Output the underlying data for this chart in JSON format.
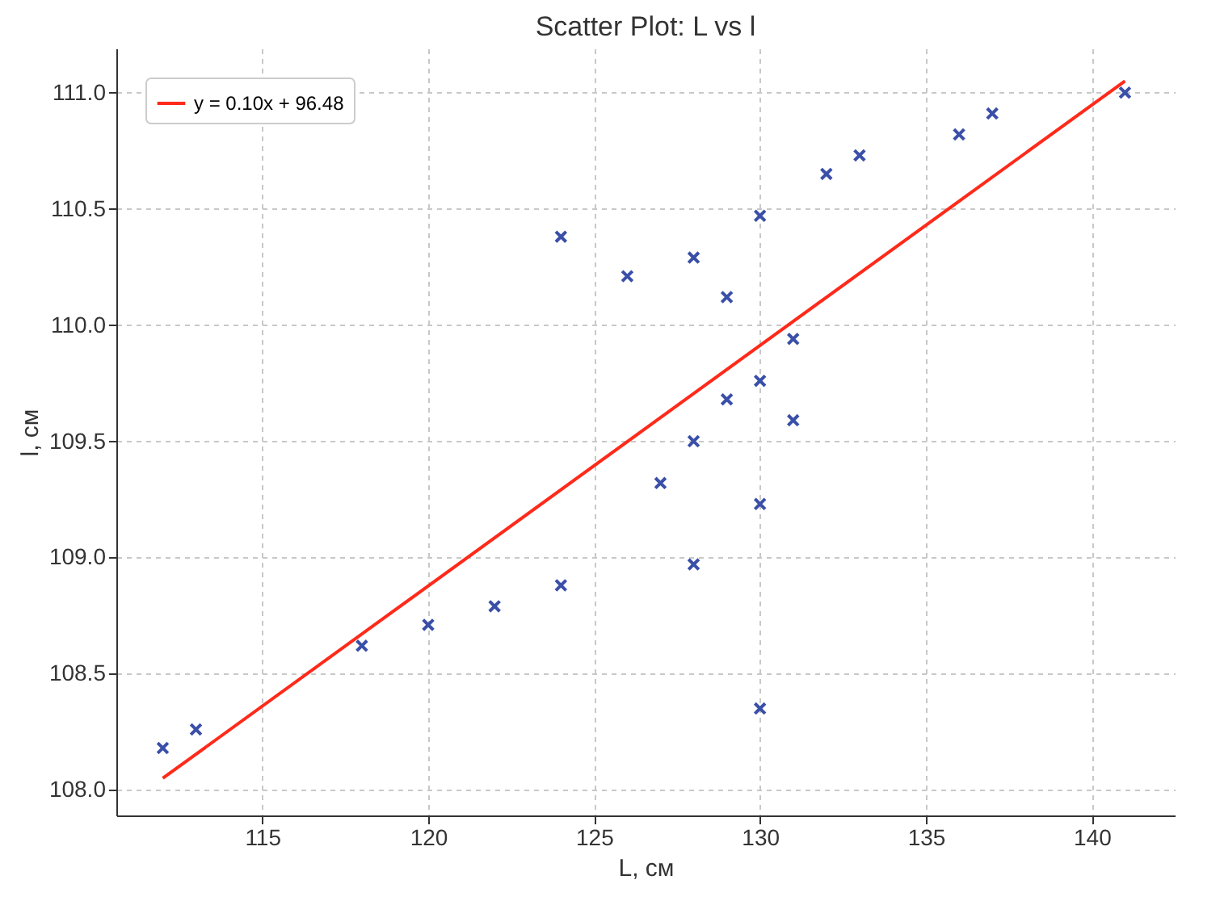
{
  "chart_data": {
    "type": "scatter",
    "title": "Scatter Plot: L vs l",
    "xlabel": "L, см",
    "ylabel": "l, см",
    "xlim": [
      110.6,
      142.5
    ],
    "ylim": [
      107.89,
      111.19
    ],
    "xticks": [
      115,
      120,
      125,
      130,
      135,
      140
    ],
    "yticks": [
      {
        "value": 108,
        "label": "108.0"
      },
      {
        "value": 108.5,
        "label": "108.5"
      },
      {
        "value": 109,
        "label": "109.0"
      },
      {
        "value": 109.5,
        "label": "109.5"
      },
      {
        "value": 110,
        "label": "110.0"
      },
      {
        "value": 110.5,
        "label": "110.5"
      },
      {
        "value": 111,
        "label": "111.0"
      }
    ],
    "grid": true,
    "legend": "top left",
    "marker": "cross",
    "series": [
      {
        "color": "#3a4fa8",
        "x": [
          112,
          113,
          118,
          120,
          122,
          124,
          124,
          126,
          127,
          128,
          128,
          128,
          129,
          129,
          130,
          130,
          130,
          130,
          131,
          131,
          132,
          133,
          136,
          137,
          141
        ],
        "values": [
          108.18,
          108.26,
          108.62,
          108.71,
          108.79,
          108.88,
          110.38,
          110.21,
          109.32,
          108.97,
          109.5,
          110.29,
          109.68,
          110.12,
          108.35,
          109.23,
          109.76,
          110.47,
          109.59,
          109.94,
          110.65,
          110.73,
          110.82,
          110.91,
          111.0
        ]
      },
      {
        "type": "line",
        "name": "y = 0.10x + 96.48",
        "color": "#ff2a1a",
        "x": [
          112,
          141
        ],
        "values": [
          108.05,
          111.05
        ],
        "marker": "none"
      }
    ]
  }
}
